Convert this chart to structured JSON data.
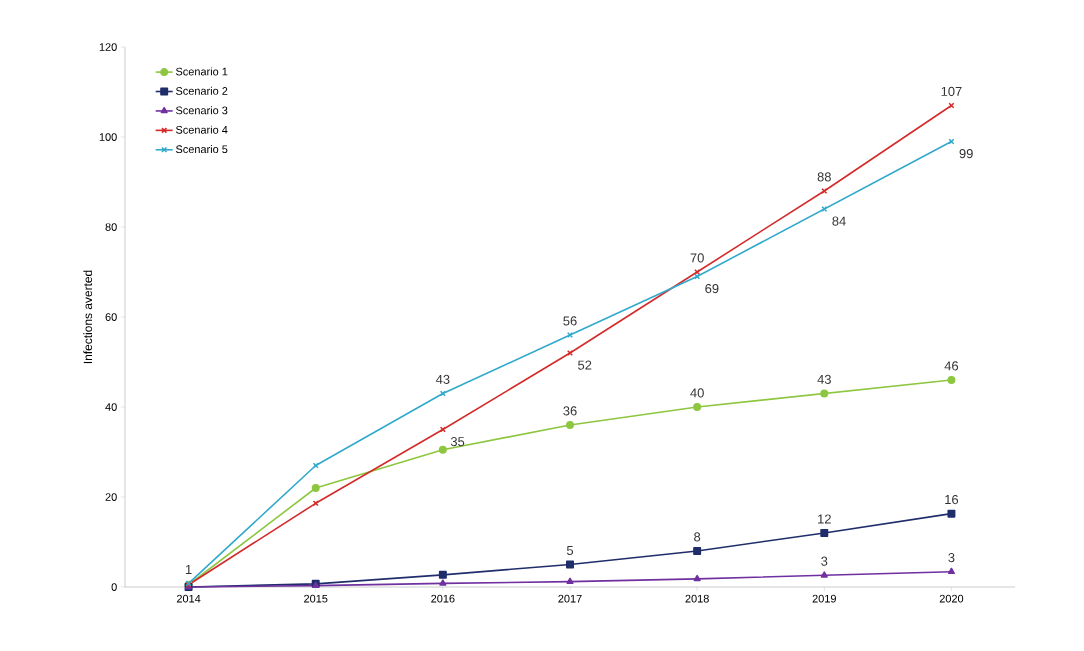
{
  "chart_data": {
    "type": "line",
    "ylabel": "Infections averted",
    "categories": [
      "2014",
      "2015",
      "2016",
      "2017",
      "2018",
      "2019",
      "2020"
    ],
    "ylim": [
      0,
      120
    ],
    "yticks": [
      0,
      20,
      40,
      60,
      80,
      100,
      120
    ],
    "grid": false,
    "legend": "top left",
    "series": [
      {
        "name": "Scenario 1",
        "color": "#8dc63f",
        "marker": "circle",
        "values": [
          0.5,
          22,
          30.5,
          36,
          40,
          43,
          46
        ],
        "value_labels": [
          null,
          null,
          null,
          "36",
          "40",
          "43",
          "46"
        ]
      },
      {
        "name": "Scenario 2",
        "color": "#1f2d6b",
        "marker": "square",
        "values": [
          0,
          0.7,
          2.7,
          5,
          8,
          12,
          16.3
        ],
        "value_labels": [
          null,
          null,
          null,
          "5",
          "8",
          "12",
          "16"
        ]
      },
      {
        "name": "Scenario 3",
        "color": "#7030a0",
        "marker": "triangle",
        "values": [
          0,
          0.3,
          0.8,
          1.2,
          1.8,
          2.6,
          3.4
        ],
        "value_labels": [
          null,
          null,
          null,
          null,
          null,
          "3",
          "3"
        ]
      },
      {
        "name": "Scenario 4",
        "color": "#d42a2a",
        "marker": "cross",
        "values": [
          0.5,
          18.6,
          35,
          52,
          70,
          88,
          107
        ],
        "value_labels": [
          null,
          null,
          "35",
          "52",
          "70",
          "88",
          "107"
        ]
      },
      {
        "name": "Scenario 5",
        "color": "#31a9cc",
        "marker": "cross",
        "values": [
          0.8,
          27,
          43,
          56,
          69,
          84,
          99
        ],
        "value_labels": [
          "1",
          null,
          "43",
          "56",
          "69",
          "84",
          "99"
        ]
      }
    ]
  }
}
